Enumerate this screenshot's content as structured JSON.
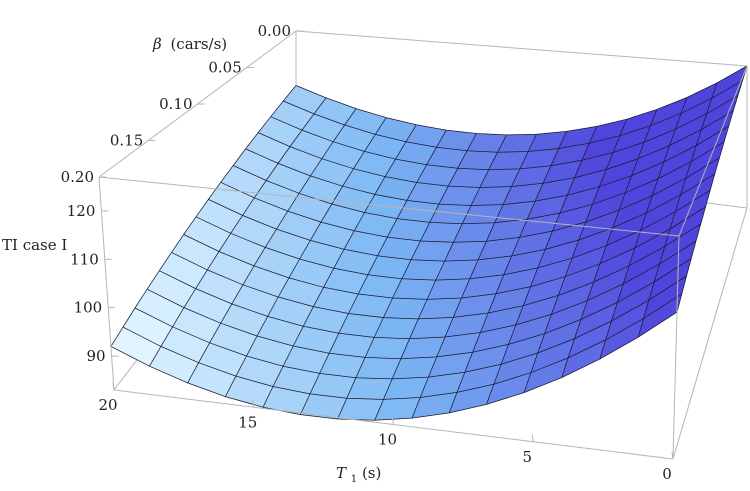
{
  "chart_data": {
    "type": "surface",
    "title": "",
    "x_axis": {
      "label": "T",
      "label_subscript": "1",
      "label_suffix": "(s)",
      "range": [
        0,
        20
      ],
      "ticks": [
        {
          "value": 20,
          "label": "20"
        },
        {
          "value": 15,
          "label": "15"
        },
        {
          "value": 10,
          "label": "10"
        },
        {
          "value": 5,
          "label": "5"
        },
        {
          "value": 0,
          "label": "0"
        }
      ]
    },
    "y_axis": {
      "label_symbol": "β",
      "label_text": "(cars/s)",
      "range": [
        0,
        0.2
      ],
      "ticks": [
        {
          "value": 0.0,
          "label": "0.00"
        },
        {
          "value": 0.05,
          "label": "0.05"
        },
        {
          "value": 0.1,
          "label": "0.10"
        },
        {
          "value": 0.15,
          "label": "0.15"
        },
        {
          "value": 0.2,
          "label": "0.20"
        }
      ]
    },
    "z_axis": {
      "label": "TI case I",
      "range": [
        83,
        127
      ],
      "ticks": [
        {
          "value": 90,
          "label": "90"
        },
        {
          "value": 100,
          "label": "100"
        },
        {
          "value": 110,
          "label": "110"
        },
        {
          "value": 120,
          "label": "120"
        }
      ]
    },
    "surface_samples": [
      {
        "T1": 0,
        "beta": 0.0,
        "TI": 127
      },
      {
        "T1": 0,
        "beta": 0.2,
        "TI": 112
      },
      {
        "T1": 10,
        "beta": 0.0,
        "TI": 98
      },
      {
        "T1": 10,
        "beta": 0.2,
        "TI": 84
      },
      {
        "T1": 20,
        "beta": 0.0,
        "TI": 107
      },
      {
        "T1": 20,
        "beta": 0.2,
        "TI": 92
      }
    ],
    "mesh": {
      "T1_lines": 15,
      "beta_lines": 15
    },
    "colors": {
      "low": "#dff4ff",
      "mid": "#7cb8f4",
      "high": "#4f45dc",
      "mesh": "#1a1a33",
      "box": "#b5b5b5"
    }
  }
}
